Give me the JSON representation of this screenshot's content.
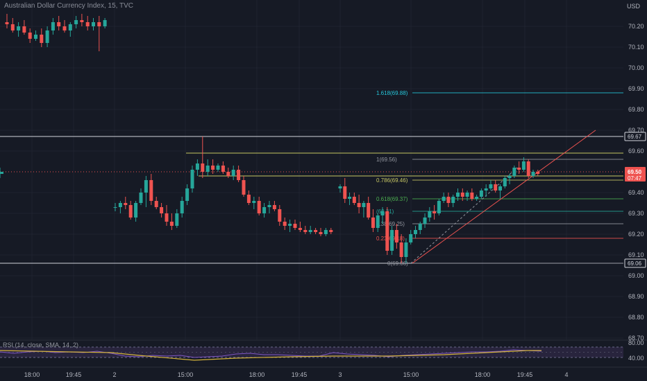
{
  "chart": {
    "title": "Australian Dollar Currency Index, 15, TVC",
    "currency": "USD",
    "rsi_label": "RSI (14, close, SMA, 14, 2)"
  },
  "chart_data": {
    "type": "candlestick",
    "y_ticks": [
      "70.20",
      "70.10",
      "70.00",
      "69.90",
      "69.80",
      "69.70",
      "69.60",
      "69.40",
      "69.30",
      "69.20",
      "69.10",
      "69.00",
      "68.90",
      "68.80",
      "68.70"
    ],
    "ylim": [
      68.65,
      70.3
    ],
    "x_ticks": [
      "18:00",
      "19:45",
      "2",
      "15:00",
      "18:00",
      "19:45",
      "3",
      "15:00",
      "18:00",
      "19:45",
      "4"
    ],
    "current_price": "69.50",
    "countdown": "07:47",
    "price_boxes": [
      {
        "label": "69.67",
        "value": 69.67
      },
      {
        "label": "69.06",
        "value": 69.06
      }
    ],
    "fib_levels": [
      {
        "label": "1.618(69.88)",
        "value": 69.88,
        "color": "#26c6da"
      },
      {
        "label": "1(69.56)",
        "value": 69.56,
        "color": "#9598a1"
      },
      {
        "label": "0.786(69.46)",
        "value": 69.46,
        "color": "#c8c864"
      },
      {
        "label": "0.618(69.37)",
        "value": 69.37,
        "color": "#4caf50"
      },
      {
        "label": "(69.31)",
        "value": 69.31,
        "color": "#26a69a"
      },
      {
        "label": "0.38(69.25)",
        "value": 69.25,
        "color": "#9598a1"
      },
      {
        "label": "0.23(69.18)",
        "value": 69.18,
        "color": "#ef5350"
      },
      {
        "label": "0(69.06)",
        "value": 69.06,
        "color": "#9598a1"
      }
    ],
    "resistance_line": 69.59,
    "support_line": 69.48,
    "candles": [
      [
        70.22,
        70.26,
        70.19,
        70.21
      ],
      [
        70.21,
        70.24,
        70.17,
        70.18
      ],
      [
        70.18,
        70.22,
        70.15,
        70.2
      ],
      [
        70.2,
        70.23,
        70.16,
        70.17
      ],
      [
        70.17,
        70.19,
        70.12,
        70.14
      ],
      [
        70.14,
        70.18,
        70.13,
        70.16
      ],
      [
        70.16,
        70.19,
        70.1,
        70.12
      ],
      [
        70.12,
        70.2,
        70.1,
        70.18
      ],
      [
        70.18,
        70.24,
        70.16,
        70.22
      ],
      [
        70.22,
        70.25,
        70.18,
        70.2
      ],
      [
        70.2,
        70.23,
        70.17,
        70.18
      ],
      [
        70.18,
        70.22,
        70.15,
        70.21
      ],
      [
        70.21,
        70.25,
        70.19,
        70.23
      ],
      [
        70.23,
        70.26,
        70.2,
        70.22
      ],
      [
        70.22,
        70.25,
        70.18,
        70.2
      ],
      [
        70.2,
        70.24,
        70.18,
        70.22
      ],
      [
        70.22,
        70.25,
        70.08,
        70.2
      ],
      [
        70.2,
        70.24,
        70.19,
        70.23
      ],
      [
        69.33,
        69.35,
        69.31,
        69.33
      ],
      [
        69.33,
        69.36,
        69.3,
        69.35
      ],
      [
        69.35,
        69.38,
        69.32,
        69.34
      ],
      [
        69.34,
        69.36,
        69.27,
        69.28
      ],
      [
        69.28,
        69.36,
        69.26,
        69.35
      ],
      [
        69.35,
        69.42,
        69.34,
        69.4
      ],
      [
        69.4,
        69.48,
        69.33,
        69.46
      ],
      [
        69.46,
        69.49,
        69.34,
        69.36
      ],
      [
        69.36,
        69.38,
        69.32,
        69.33
      ],
      [
        69.33,
        69.35,
        69.28,
        69.3
      ],
      [
        69.3,
        69.34,
        69.24,
        69.26
      ],
      [
        69.26,
        69.3,
        69.22,
        69.24
      ],
      [
        69.24,
        69.32,
        69.23,
        69.3
      ],
      [
        69.3,
        69.38,
        69.28,
        69.36
      ],
      [
        69.36,
        69.44,
        69.34,
        69.42
      ],
      [
        69.42,
        69.53,
        69.4,
        69.51
      ],
      [
        69.51,
        69.56,
        69.48,
        69.54
      ],
      [
        69.54,
        69.67,
        69.47,
        69.5
      ],
      [
        69.5,
        69.56,
        69.48,
        69.53
      ],
      [
        69.53,
        69.56,
        69.49,
        69.51
      ],
      [
        69.51,
        69.54,
        69.5,
        69.53
      ],
      [
        69.53,
        69.55,
        69.49,
        69.5
      ],
      [
        69.5,
        69.52,
        69.47,
        69.48
      ],
      [
        69.48,
        69.53,
        69.46,
        69.51
      ],
      [
        69.51,
        69.53,
        69.45,
        69.46
      ],
      [
        69.46,
        69.48,
        69.38,
        69.39
      ],
      [
        69.39,
        69.41,
        69.34,
        69.35
      ],
      [
        69.35,
        69.38,
        69.32,
        69.36
      ],
      [
        69.36,
        69.38,
        69.29,
        69.3
      ],
      [
        69.3,
        69.35,
        69.28,
        69.33
      ],
      [
        69.33,
        69.36,
        69.3,
        69.34
      ],
      [
        69.34,
        69.36,
        69.31,
        69.32
      ],
      [
        69.32,
        69.34,
        69.24,
        69.26
      ],
      [
        69.26,
        69.28,
        69.22,
        69.24
      ],
      [
        69.24,
        69.27,
        69.21,
        69.25
      ],
      [
        69.25,
        69.27,
        69.22,
        69.23
      ],
      [
        69.23,
        69.26,
        69.21,
        69.22
      ],
      [
        69.22,
        69.24,
        69.2,
        69.21
      ],
      [
        69.21,
        69.24,
        69.2,
        69.22
      ],
      [
        69.22,
        69.23,
        69.2,
        69.21
      ],
      [
        69.21,
        69.23,
        69.19,
        69.2
      ],
      [
        69.2,
        69.23,
        69.19,
        69.22
      ],
      [
        69.22,
        69.23,
        69.2,
        69.21
      ],
      [
        69.42,
        69.44,
        69.4,
        69.43
      ],
      [
        69.43,
        69.47,
        69.35,
        69.37
      ],
      [
        69.37,
        69.4,
        69.34,
        69.38
      ],
      [
        69.38,
        69.4,
        69.34,
        69.35
      ],
      [
        69.35,
        69.39,
        69.3,
        69.33
      ],
      [
        69.33,
        69.36,
        69.28,
        69.35
      ],
      [
        69.35,
        69.38,
        69.27,
        69.28
      ],
      [
        69.28,
        69.32,
        69.21,
        69.23
      ],
      [
        69.23,
        69.3,
        69.21,
        69.29
      ],
      [
        69.29,
        69.33,
        69.25,
        69.31
      ],
      [
        69.31,
        69.33,
        69.1,
        69.12
      ],
      [
        69.12,
        69.24,
        69.1,
        69.22
      ],
      [
        69.22,
        69.25,
        69.13,
        69.16
      ],
      [
        69.16,
        69.2,
        69.06,
        69.09
      ],
      [
        69.09,
        69.18,
        69.06,
        69.16
      ],
      [
        69.16,
        69.22,
        69.15,
        69.2
      ],
      [
        69.2,
        69.24,
        69.18,
        69.22
      ],
      [
        69.22,
        69.26,
        69.2,
        69.25
      ],
      [
        69.25,
        69.3,
        69.23,
        69.28
      ],
      [
        69.28,
        69.33,
        69.26,
        69.31
      ],
      [
        69.31,
        69.34,
        69.27,
        69.3
      ],
      [
        69.3,
        69.37,
        69.29,
        69.36
      ],
      [
        69.36,
        69.4,
        69.35,
        69.38
      ],
      [
        69.38,
        69.4,
        69.33,
        69.35
      ],
      [
        69.35,
        69.39,
        69.33,
        69.38
      ],
      [
        69.38,
        69.42,
        69.36,
        69.4
      ],
      [
        69.4,
        69.42,
        69.36,
        69.38
      ],
      [
        69.38,
        69.41,
        69.36,
        69.4
      ],
      [
        69.4,
        69.42,
        69.36,
        69.37
      ],
      [
        69.37,
        69.39,
        69.36,
        69.38
      ],
      [
        69.38,
        69.42,
        69.37,
        69.41
      ],
      [
        69.41,
        69.44,
        69.38,
        69.42
      ],
      [
        69.42,
        69.46,
        69.41,
        69.44
      ],
      [
        69.44,
        69.46,
        69.4,
        69.41
      ],
      [
        69.41,
        69.44,
        69.37,
        69.43
      ],
      [
        69.43,
        69.48,
        69.42,
        69.47
      ],
      [
        69.47,
        69.49,
        69.44,
        69.48
      ],
      [
        69.48,
        69.53,
        69.47,
        69.52
      ],
      [
        69.52,
        69.55,
        69.49,
        69.51
      ],
      [
        69.51,
        69.57,
        69.5,
        69.55
      ],
      [
        69.55,
        69.56,
        69.47,
        69.48
      ],
      [
        69.48,
        69.51,
        69.47,
        69.5
      ],
      [
        69.5,
        69.51,
        69.48,
        69.49
      ],
      [
        69.49,
        69.52,
        69.47,
        69.5
      ]
    ],
    "rsi": {
      "upper": "80.00",
      "lower": "40.00"
    }
  }
}
